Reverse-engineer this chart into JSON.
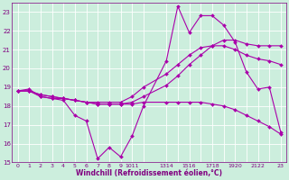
{
  "xlabel": "Windchill (Refroidissement éolien,°C)",
  "xlim": [
    -0.5,
    23.5
  ],
  "ylim": [
    15,
    23.5
  ],
  "bg_color": "#cceedd",
  "line_color": "#aa00aa",
  "yticks": [
    15,
    16,
    17,
    18,
    19,
    20,
    21,
    22,
    23
  ],
  "xtick_positions": [
    0,
    1,
    2,
    3,
    4,
    5,
    6,
    7,
    8,
    9,
    10,
    11,
    13,
    14,
    15,
    16,
    17,
    18,
    19,
    20,
    21,
    22,
    23
  ],
  "xtick_labels": [
    "0",
    "1",
    "2",
    "3",
    "4",
    "5",
    "6",
    "7",
    "8",
    "9",
    "1011",
    "",
    "1314",
    "",
    "1516",
    "",
    "1718",
    "",
    "1920",
    "",
    "2122",
    "",
    "23"
  ],
  "series": [
    {
      "x": [
        0,
        1,
        2,
        3,
        4,
        5,
        6,
        7,
        8,
        9,
        10,
        11,
        13,
        14,
        15,
        16,
        17,
        18,
        19,
        20,
        21,
        22,
        23
      ],
      "y": [
        18.8,
        18.9,
        18.5,
        18.4,
        18.3,
        17.5,
        17.2,
        15.2,
        15.8,
        15.3,
        16.4,
        18.0,
        20.4,
        23.3,
        21.9,
        22.8,
        22.8,
        22.3,
        21.4,
        19.8,
        18.9,
        19.0,
        16.6
      ]
    },
    {
      "x": [
        0,
        1,
        2,
        3,
        4,
        5,
        6,
        7,
        8,
        9,
        10,
        11,
        13,
        14,
        15,
        16,
        17,
        18,
        19,
        20,
        21,
        22,
        23
      ],
      "y": [
        18.8,
        18.8,
        18.5,
        18.4,
        18.4,
        18.3,
        18.2,
        18.2,
        18.2,
        18.2,
        18.5,
        19.0,
        19.7,
        20.2,
        20.7,
        21.1,
        21.2,
        21.2,
        21.0,
        20.7,
        20.5,
        20.4,
        20.2
      ]
    },
    {
      "x": [
        0,
        1,
        2,
        3,
        4,
        5,
        6,
        7,
        8,
        9,
        10,
        11,
        13,
        14,
        15,
        16,
        17,
        18,
        19,
        20,
        21,
        22,
        23
      ],
      "y": [
        18.8,
        18.8,
        18.6,
        18.5,
        18.4,
        18.3,
        18.2,
        18.1,
        18.1,
        18.1,
        18.1,
        18.2,
        18.2,
        18.2,
        18.2,
        18.2,
        18.1,
        18.0,
        17.8,
        17.5,
        17.2,
        16.9,
        16.5
      ]
    },
    {
      "x": [
        0,
        1,
        2,
        3,
        4,
        5,
        6,
        7,
        8,
        9,
        10,
        11,
        13,
        14,
        15,
        16,
        17,
        18,
        19,
        20,
        21,
        22,
        23
      ],
      "y": [
        18.8,
        18.8,
        18.6,
        18.5,
        18.4,
        18.3,
        18.2,
        18.1,
        18.1,
        18.1,
        18.2,
        18.5,
        19.1,
        19.6,
        20.2,
        20.7,
        21.2,
        21.5,
        21.5,
        21.3,
        21.2,
        21.2,
        21.2
      ]
    }
  ]
}
